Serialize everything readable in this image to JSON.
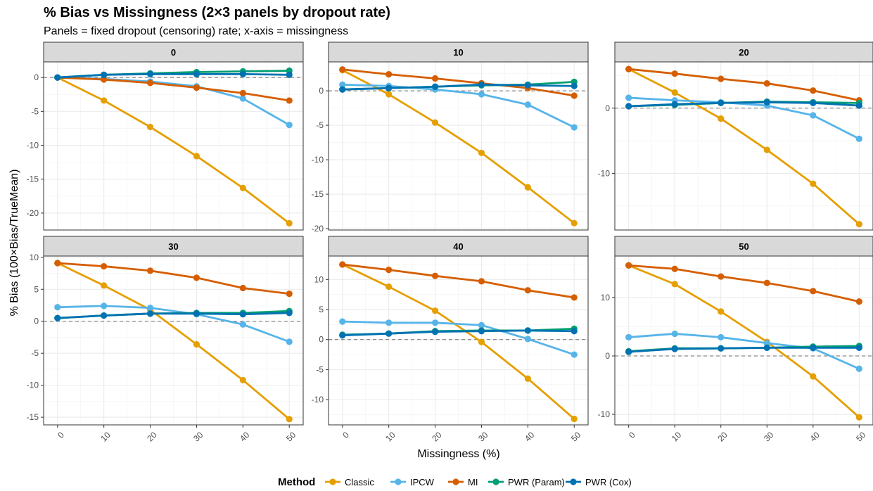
{
  "chart_data": {
    "type": "line",
    "title": "% Bias vs Missingness (2×3 panels by dropout rate)",
    "subtitle": "Panels = fixed dropout (censoring) rate; x-axis = missingness",
    "xlabel": "Missingness (%)",
    "ylabel": "% Bias (100×Bias/TrueMean)",
    "legend_title": "Method",
    "legend_position": "bottom",
    "grid": true,
    "reference_line_y": 0,
    "x": [
      0,
      10,
      20,
      30,
      40,
      50
    ],
    "x_tick_labels": [
      "0",
      "10",
      "20",
      "30",
      "40",
      "50"
    ],
    "series_styles": [
      {
        "name": "Classic",
        "color": "#E69F00"
      },
      {
        "name": "IPCW",
        "color": "#56B4E9"
      },
      {
        "name": "MI",
        "color": "#D55E00"
      },
      {
        "name": "PWR (Param)",
        "color": "#009E73"
      },
      {
        "name": "PWR (Cox)",
        "color": "#0072B2"
      }
    ],
    "panels": [
      {
        "label": "0",
        "ylim": [
          -22.5,
          2.3
        ],
        "y_ticks": [
          0,
          -5,
          -10,
          -15,
          -20
        ],
        "series": [
          {
            "name": "Classic",
            "values": [
              0,
              -3.4,
              -7.3,
              -11.6,
              -16.3,
              -21.5
            ]
          },
          {
            "name": "IPCW",
            "values": [
              0,
              -0.2,
              -0.6,
              -1.3,
              -3.1,
              -7.0
            ]
          },
          {
            "name": "MI",
            "values": [
              0,
              -0.3,
              -0.8,
              -1.5,
              -2.3,
              -3.4
            ]
          },
          {
            "name": "PWR (Param)",
            "values": [
              0,
              0.4,
              0.6,
              0.8,
              0.9,
              1.0
            ]
          },
          {
            "name": "PWR (Cox)",
            "values": [
              0,
              0.4,
              0.5,
              0.5,
              0.5,
              0.4
            ]
          }
        ]
      },
      {
        "label": "10",
        "ylim": [
          -20.2,
          4.2
        ],
        "y_ticks": [
          0,
          -5,
          -10,
          -15,
          -20
        ],
        "series": [
          {
            "name": "Classic",
            "values": [
              3.0,
              -0.5,
              -4.6,
              -9.0,
              -14.0,
              -19.2
            ]
          },
          {
            "name": "IPCW",
            "values": [
              0.9,
              0.7,
              0.2,
              -0.5,
              -2.0,
              -5.3
            ]
          },
          {
            "name": "MI",
            "values": [
              3.1,
              2.4,
              1.8,
              1.1,
              0.4,
              -0.7
            ]
          },
          {
            "name": "PWR (Param)",
            "values": [
              0.2,
              0.4,
              0.6,
              0.8,
              0.9,
              1.3
            ]
          },
          {
            "name": "PWR (Cox)",
            "values": [
              0.2,
              0.4,
              0.6,
              0.9,
              0.8,
              0.7
            ]
          }
        ]
      },
      {
        "label": "20",
        "ylim": [
          -18.7,
          7.1
        ],
        "y_ticks": [
          0,
          -10
        ],
        "series": [
          {
            "name": "Classic",
            "values": [
              6.0,
              2.4,
              -1.6,
              -6.4,
              -11.6,
              -17.8
            ]
          },
          {
            "name": "IPCW",
            "values": [
              1.6,
              1.2,
              0.9,
              0.4,
              -1.1,
              -4.7
            ]
          },
          {
            "name": "MI",
            "values": [
              6.0,
              5.3,
              4.5,
              3.8,
              2.7,
              1.2
            ]
          },
          {
            "name": "PWR (Param)",
            "values": [
              0.3,
              0.5,
              0.8,
              1.0,
              0.9,
              0.8
            ]
          },
          {
            "name": "PWR (Cox)",
            "values": [
              0.3,
              0.6,
              0.8,
              0.9,
              0.8,
              0.4
            ]
          }
        ]
      },
      {
        "label": "30",
        "ylim": [
          -16.2,
          10.2
        ],
        "y_ticks": [
          10,
          5,
          0,
          -5,
          -10,
          -15
        ],
        "series": [
          {
            "name": "Classic",
            "values": [
              9.1,
              5.6,
              1.8,
              -3.6,
              -9.2,
              -15.3
            ]
          },
          {
            "name": "IPCW",
            "values": [
              2.2,
              2.4,
              2.1,
              1.1,
              -0.5,
              -3.2
            ]
          },
          {
            "name": "MI",
            "values": [
              9.1,
              8.6,
              7.9,
              6.8,
              5.2,
              4.3
            ]
          },
          {
            "name": "PWR (Param)",
            "values": [
              0.5,
              0.9,
              1.2,
              1.3,
              1.3,
              1.6
            ]
          },
          {
            "name": "PWR (Cox)",
            "values": [
              0.5,
              0.9,
              1.2,
              1.2,
              1.1,
              1.3
            ]
          }
        ]
      },
      {
        "label": "40",
        "ylim": [
          -14.2,
          13.9
        ],
        "y_ticks": [
          10,
          5,
          0,
          -5,
          -10
        ],
        "series": [
          {
            "name": "Classic",
            "values": [
              12.5,
              8.8,
              4.8,
              -0.4,
              -6.5,
              -13.2
            ]
          },
          {
            "name": "IPCW",
            "values": [
              3.0,
              2.8,
              2.8,
              2.4,
              0.1,
              -2.5
            ]
          },
          {
            "name": "MI",
            "values": [
              12.5,
              11.6,
              10.6,
              9.7,
              8.2,
              7.0
            ]
          },
          {
            "name": "PWR (Param)",
            "values": [
              0.8,
              1.0,
              1.4,
              1.5,
              1.5,
              1.8
            ]
          },
          {
            "name": "PWR (Cox)",
            "values": [
              0.7,
              1.0,
              1.3,
              1.4,
              1.5,
              1.4
            ]
          }
        ]
      },
      {
        "label": "50",
        "ylim": [
          -11.8,
          17.1
        ],
        "y_ticks": [
          10,
          0,
          -10
        ],
        "series": [
          {
            "name": "Classic",
            "values": [
              15.5,
              12.3,
              7.6,
              2.4,
              -3.5,
              -10.5
            ]
          },
          {
            "name": "IPCW",
            "values": [
              3.2,
              3.8,
              3.2,
              2.2,
              1.3,
              -2.2
            ]
          },
          {
            "name": "MI",
            "values": [
              15.5,
              14.9,
              13.6,
              12.5,
              11.1,
              9.3
            ]
          },
          {
            "name": "PWR (Param)",
            "values": [
              0.8,
              1.3,
              1.3,
              1.4,
              1.6,
              1.7
            ]
          },
          {
            "name": "PWR (Cox)",
            "values": [
              0.7,
              1.2,
              1.3,
              1.4,
              1.4,
              1.4
            ]
          }
        ]
      }
    ]
  }
}
